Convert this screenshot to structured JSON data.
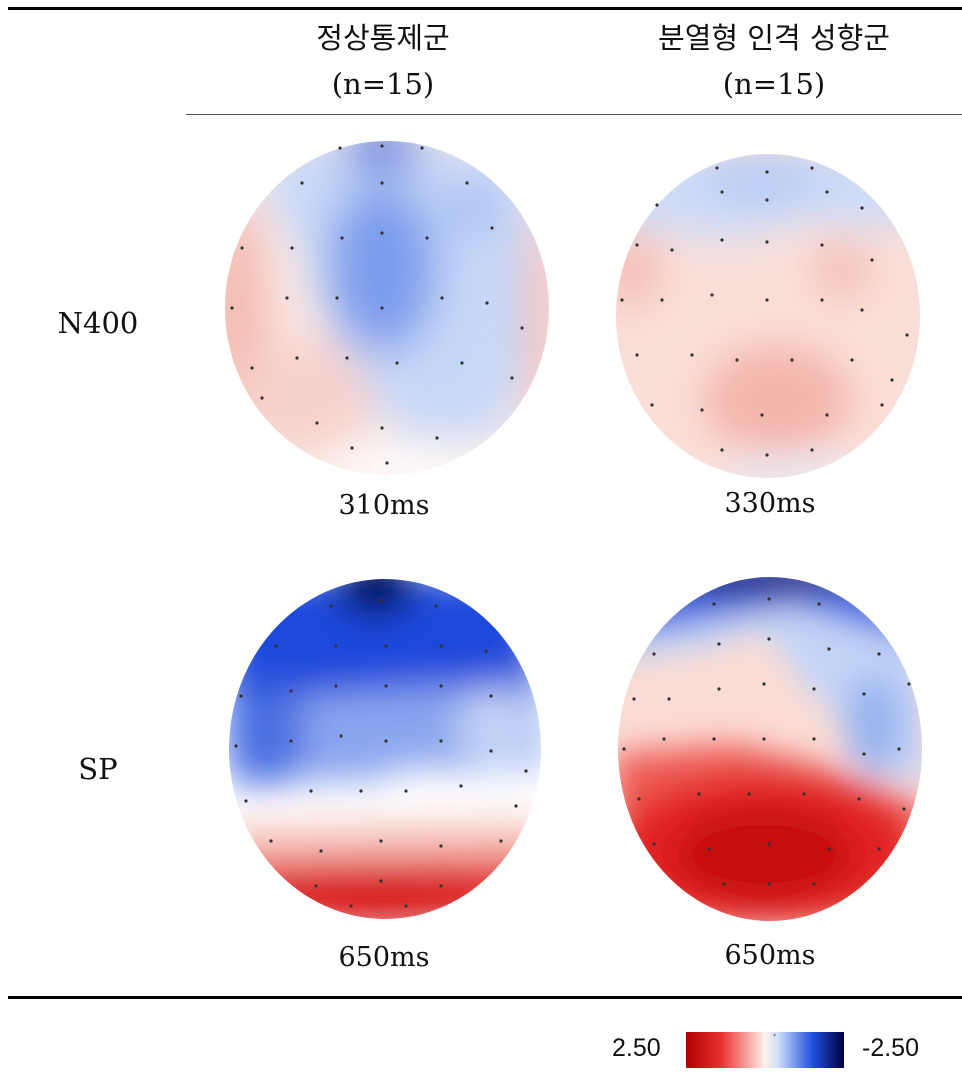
{
  "header": {
    "group1_name": "정상통제군",
    "group1_n": "(n=15)",
    "group2_name": "분열형 인격 성향군",
    "group2_n": "(n=15)"
  },
  "rows": {
    "row1_label": "N400",
    "row2_label": "SP"
  },
  "times": {
    "n400_group1": "310ms",
    "n400_group2": "330ms",
    "sp_group1": "650ms",
    "sp_group2": "650ms"
  },
  "colorbar": {
    "max_label": "2.50",
    "min_label": "-2.50",
    "colors": [
      "#b00000",
      "#e83030",
      "#fff0ea",
      "#cfe0fb",
      "#2050e0",
      "#000040"
    ]
  }
}
